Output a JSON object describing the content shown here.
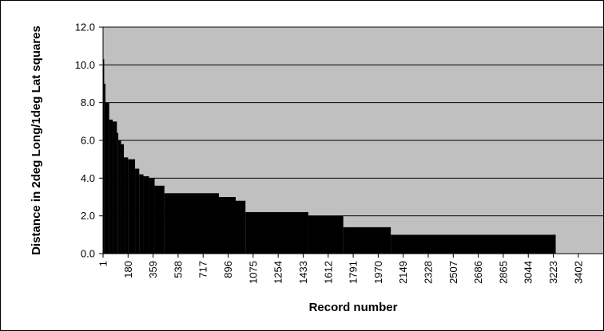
{
  "chart_data": {
    "type": "bar",
    "title": "",
    "xlabel": "Record number",
    "ylabel": "Distance in 2deg Long/1deg Lat squares",
    "ylim": [
      0,
      12
    ],
    "xlim": [
      1,
      3580
    ],
    "grid": "horizontal",
    "legend": "none",
    "y_ticks": [
      "0.0",
      "2.0",
      "4.0",
      "6.0",
      "8.0",
      "10.0",
      "12.0"
    ],
    "x_ticks": [
      "1",
      "180",
      "359",
      "538",
      "717",
      "896",
      "1075",
      "1254",
      "1433",
      "1612",
      "1791",
      "1970",
      "2149",
      "2328",
      "2507",
      "2686",
      "2865",
      "3044",
      "3223",
      "3402"
    ],
    "steps": [
      {
        "from": 1,
        "to": 9,
        "value": 10.3
      },
      {
        "from": 9,
        "to": 18,
        "value": 9.0
      },
      {
        "from": 18,
        "to": 45,
        "value": 8.0
      },
      {
        "from": 45,
        "to": 70,
        "value": 7.1
      },
      {
        "from": 70,
        "to": 100,
        "value": 7.0
      },
      {
        "from": 100,
        "to": 110,
        "value": 6.4
      },
      {
        "from": 110,
        "to": 130,
        "value": 6.0
      },
      {
        "from": 130,
        "to": 150,
        "value": 5.8
      },
      {
        "from": 150,
        "to": 180,
        "value": 5.1
      },
      {
        "from": 180,
        "to": 230,
        "value": 5.0
      },
      {
        "from": 230,
        "to": 260,
        "value": 4.5
      },
      {
        "from": 260,
        "to": 290,
        "value": 4.2
      },
      {
        "from": 290,
        "to": 330,
        "value": 4.1
      },
      {
        "from": 330,
        "to": 370,
        "value": 4.0
      },
      {
        "from": 370,
        "to": 440,
        "value": 3.6
      },
      {
        "from": 440,
        "to": 830,
        "value": 3.2
      },
      {
        "from": 830,
        "to": 950,
        "value": 3.0
      },
      {
        "from": 950,
        "to": 1020,
        "value": 2.8
      },
      {
        "from": 1020,
        "to": 1470,
        "value": 2.2
      },
      {
        "from": 1470,
        "to": 1720,
        "value": 2.0
      },
      {
        "from": 1720,
        "to": 2060,
        "value": 1.4
      },
      {
        "from": 2060,
        "to": 3240,
        "value": 1.0
      },
      {
        "from": 3240,
        "to": 3580,
        "value": 0.0
      }
    ]
  },
  "colors": {
    "plot_background": "#c0c0c0",
    "bars": "#000000",
    "gridlines": "#000000",
    "frame": "#000000"
  }
}
